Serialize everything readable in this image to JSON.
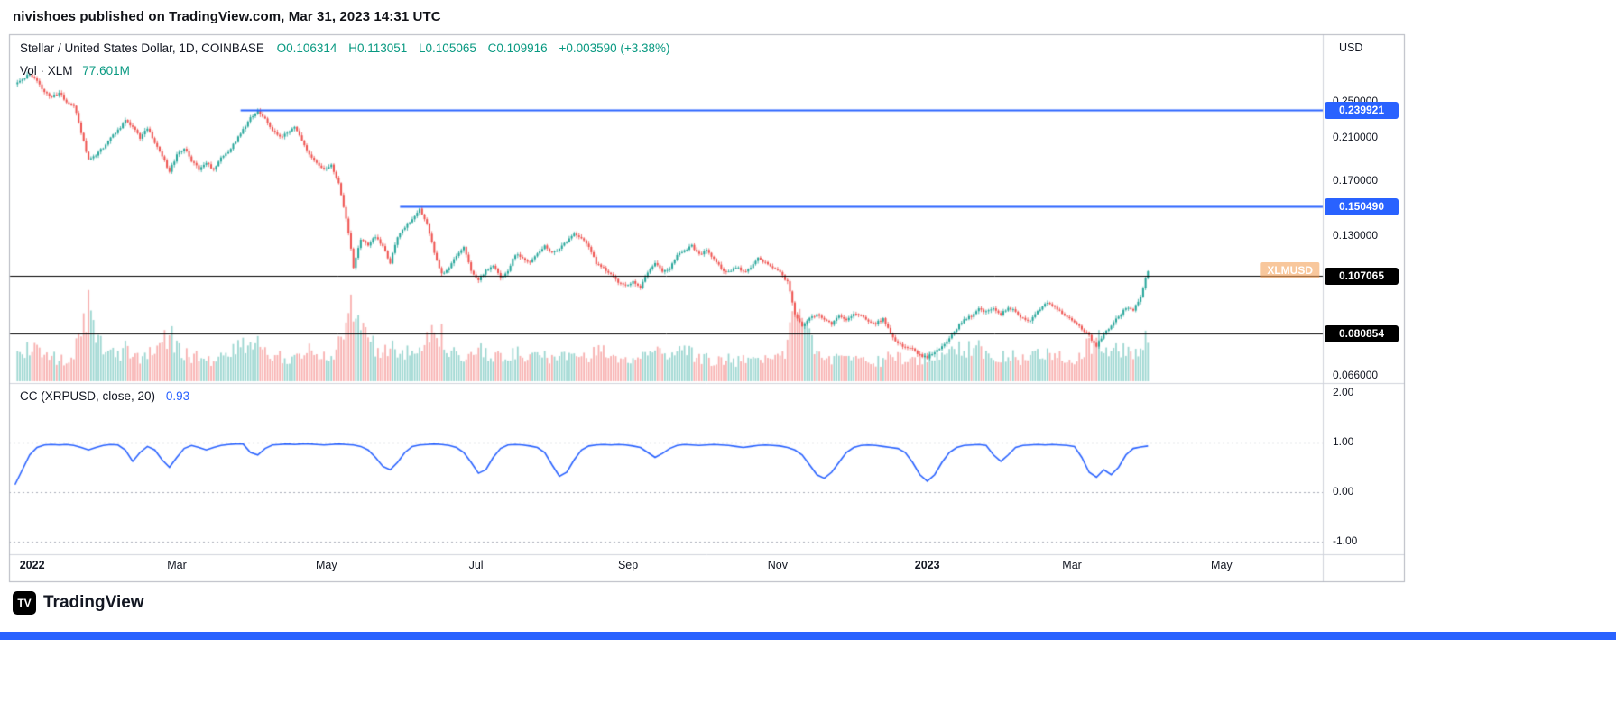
{
  "page": {
    "publish_line": "nivishoes published on TradingView.com, Mar 31, 2023 14:31 UTC",
    "logo_text": "TradingView",
    "logo_glyph": "TV",
    "accent_blue": "#2962ff"
  },
  "chart": {
    "legend": {
      "title": "Stellar / United States Dollar, 1D, COINBASE",
      "o": "O0.106314",
      "h": "H0.113051",
      "l": "L0.105065",
      "c": "C0.109916",
      "change": "+0.003590 (+3.38%)",
      "volume_label": "Vol · XLM",
      "volume_value": "77.601M"
    },
    "cc_legend": {
      "label": "CC (XRPUSD, close, 20)",
      "value": "0.93"
    },
    "axis_currency": "USD"
  },
  "chart_data": {
    "type": "candlestick",
    "title": "Stellar / United States Dollar, 1D, COINBASE",
    "symbol": "XLMUSD",
    "interval": "1D",
    "yscale": "log",
    "ylim_price": [
      0.06,
      0.31
    ],
    "x_start_date": "2021-12-25",
    "sample_interval_days": 3,
    "ohlc_last": {
      "open": 0.106314,
      "high": 0.113051,
      "low": 0.105065,
      "close": 0.109916,
      "change": 0.00359,
      "change_pct": 3.38
    },
    "volume_last": "77.601M",
    "price_axis": {
      "currency": "USD",
      "labels": [
        {
          "text": "0.250000",
          "value": 0.25
        },
        {
          "text": "0.210000",
          "value": 0.21
        },
        {
          "text": "0.170000",
          "value": 0.17
        },
        {
          "text": "0.130000",
          "value": 0.13
        },
        {
          "text": "0.066000",
          "value": 0.066
        }
      ]
    },
    "horizontal_lines": [
      {
        "value": 0.239921,
        "label": "0.239921",
        "color": "#2962ff",
        "start_day": 92
      },
      {
        "value": 0.15049,
        "label": "0.150490",
        "color": "#2962ff",
        "start_day": 157
      },
      {
        "value": 0.107065,
        "label": "0.107065",
        "color": "#000000",
        "start_day": -2
      },
      {
        "value": 0.080854,
        "label": "0.080854",
        "color": "#000000",
        "start_day": -2
      }
    ],
    "x_tick_labels": [
      {
        "label": "2022",
        "day": 7,
        "major": true
      },
      {
        "label": "Mar",
        "day": 66,
        "major": false
      },
      {
        "label": "May",
        "day": 127,
        "major": false
      },
      {
        "label": "Jul",
        "day": 188,
        "major": false
      },
      {
        "label": "Sep",
        "day": 250,
        "major": false
      },
      {
        "label": "Nov",
        "day": 311,
        "major": false
      },
      {
        "label": "2023",
        "day": 372,
        "major": true
      },
      {
        "label": "Mar",
        "day": 431,
        "major": false
      },
      {
        "label": "May",
        "day": 492,
        "major": false
      }
    ],
    "closes_3d": [
      0.272,
      0.278,
      0.287,
      0.276,
      0.262,
      0.255,
      0.262,
      0.25,
      0.246,
      0.215,
      0.188,
      0.193,
      0.2,
      0.21,
      0.218,
      0.228,
      0.222,
      0.21,
      0.22,
      0.205,
      0.192,
      0.178,
      0.193,
      0.2,
      0.188,
      0.18,
      0.186,
      0.18,
      0.19,
      0.196,
      0.206,
      0.218,
      0.232,
      0.238,
      0.23,
      0.218,
      0.21,
      0.216,
      0.221,
      0.208,
      0.193,
      0.186,
      0.18,
      0.184,
      0.168,
      0.142,
      0.112,
      0.128,
      0.124,
      0.13,
      0.124,
      0.114,
      0.13,
      0.136,
      0.141,
      0.149,
      0.138,
      0.12,
      0.108,
      0.112,
      0.118,
      0.124,
      0.11,
      0.105,
      0.11,
      0.113,
      0.106,
      0.11,
      0.119,
      0.117,
      0.114,
      0.119,
      0.124,
      0.12,
      0.122,
      0.127,
      0.132,
      0.129,
      0.124,
      0.114,
      0.111,
      0.108,
      0.104,
      0.102,
      0.104,
      0.101,
      0.109,
      0.114,
      0.109,
      0.111,
      0.119,
      0.121,
      0.124,
      0.119,
      0.121,
      0.117,
      0.111,
      0.109,
      0.112,
      0.109,
      0.111,
      0.117,
      0.114,
      0.111,
      0.109,
      0.104,
      0.089,
      0.084,
      0.087,
      0.089,
      0.087,
      0.085,
      0.088,
      0.086,
      0.089,
      0.088,
      0.086,
      0.085,
      0.087,
      0.081,
      0.077,
      0.076,
      0.075,
      0.073,
      0.072,
      0.074,
      0.076,
      0.079,
      0.083,
      0.087,
      0.088,
      0.091,
      0.09,
      0.092,
      0.089,
      0.092,
      0.09,
      0.087,
      0.086,
      0.09,
      0.094,
      0.093,
      0.09,
      0.088,
      0.086,
      0.083,
      0.08,
      0.076,
      0.081,
      0.084,
      0.088,
      0.092,
      0.091,
      0.097,
      0.11
    ],
    "volumes_rel_3d": [
      0.35,
      0.3,
      0.45,
      0.4,
      0.32,
      0.28,
      0.3,
      0.26,
      0.34,
      0.6,
      0.95,
      0.55,
      0.4,
      0.38,
      0.35,
      0.42,
      0.36,
      0.3,
      0.33,
      0.38,
      0.52,
      0.6,
      0.44,
      0.36,
      0.32,
      0.3,
      0.28,
      0.27,
      0.3,
      0.33,
      0.38,
      0.44,
      0.5,
      0.46,
      0.38,
      0.33,
      0.3,
      0.28,
      0.31,
      0.36,
      0.42,
      0.36,
      0.32,
      0.3,
      0.52,
      0.85,
      1.0,
      0.7,
      0.5,
      0.42,
      0.38,
      0.45,
      0.4,
      0.34,
      0.36,
      0.48,
      0.55,
      0.65,
      0.58,
      0.42,
      0.36,
      0.32,
      0.4,
      0.44,
      0.36,
      0.3,
      0.34,
      0.3,
      0.36,
      0.32,
      0.28,
      0.3,
      0.34,
      0.3,
      0.28,
      0.34,
      0.4,
      0.36,
      0.32,
      0.42,
      0.36,
      0.3,
      0.28,
      0.26,
      0.24,
      0.28,
      0.34,
      0.38,
      0.3,
      0.28,
      0.44,
      0.38,
      0.34,
      0.3,
      0.28,
      0.26,
      0.3,
      0.28,
      0.24,
      0.26,
      0.24,
      0.28,
      0.26,
      0.24,
      0.3,
      0.44,
      1.0,
      0.85,
      0.55,
      0.4,
      0.34,
      0.3,
      0.28,
      0.26,
      0.28,
      0.24,
      0.26,
      0.24,
      0.26,
      0.36,
      0.32,
      0.28,
      0.26,
      0.3,
      0.28,
      0.3,
      0.34,
      0.38,
      0.42,
      0.44,
      0.38,
      0.4,
      0.34,
      0.36,
      0.32,
      0.34,
      0.3,
      0.28,
      0.3,
      0.34,
      0.36,
      0.32,
      0.3,
      0.28,
      0.3,
      0.38,
      0.44,
      0.56,
      0.42,
      0.36,
      0.4,
      0.44,
      0.38,
      0.46,
      0.6
    ],
    "cc_indicator": {
      "type": "line",
      "name": "CC",
      "params": "XRPUSD, close, 20",
      "last": 0.93,
      "color": "#2962ff",
      "ylim": [
        -1.35,
        2.15
      ],
      "axis_labels": [
        {
          "text": "2.00",
          "value": 2
        },
        {
          "text": "1.00",
          "value": 1
        },
        {
          "text": "0.00",
          "value": 0
        },
        {
          "text": "-1.00",
          "value": -1
        }
      ],
      "dashed_levels": [
        1,
        0,
        -1
      ],
      "values_3d": [
        0.15,
        0.45,
        0.75,
        0.9,
        0.95,
        0.96,
        0.95,
        0.96,
        0.94,
        0.9,
        0.85,
        0.9,
        0.94,
        0.96,
        0.95,
        0.85,
        0.62,
        0.8,
        0.92,
        0.85,
        0.65,
        0.5,
        0.7,
        0.88,
        0.94,
        0.9,
        0.85,
        0.9,
        0.94,
        0.96,
        0.97,
        0.97,
        0.8,
        0.75,
        0.88,
        0.95,
        0.96,
        0.97,
        0.96,
        0.97,
        0.97,
        0.96,
        0.95,
        0.96,
        0.97,
        0.96,
        0.95,
        0.92,
        0.85,
        0.7,
        0.52,
        0.45,
        0.6,
        0.8,
        0.92,
        0.95,
        0.96,
        0.97,
        0.96,
        0.94,
        0.9,
        0.8,
        0.6,
        0.38,
        0.45,
        0.7,
        0.88,
        0.95,
        0.96,
        0.95,
        0.93,
        0.9,
        0.8,
        0.55,
        0.32,
        0.4,
        0.65,
        0.85,
        0.93,
        0.95,
        0.96,
        0.95,
        0.96,
        0.95,
        0.93,
        0.9,
        0.8,
        0.7,
        0.78,
        0.88,
        0.94,
        0.96,
        0.95,
        0.94,
        0.95,
        0.96,
        0.95,
        0.94,
        0.92,
        0.9,
        0.92,
        0.94,
        0.95,
        0.94,
        0.93,
        0.9,
        0.85,
        0.75,
        0.55,
        0.35,
        0.28,
        0.4,
        0.6,
        0.8,
        0.9,
        0.94,
        0.95,
        0.94,
        0.92,
        0.9,
        0.88,
        0.8,
        0.6,
        0.35,
        0.22,
        0.35,
        0.6,
        0.8,
        0.9,
        0.94,
        0.95,
        0.96,
        0.94,
        0.75,
        0.62,
        0.75,
        0.9,
        0.94,
        0.95,
        0.96,
        0.95,
        0.96,
        0.95,
        0.94,
        0.92,
        0.7,
        0.4,
        0.3,
        0.45,
        0.35,
        0.5,
        0.75,
        0.88,
        0.91,
        0.93
      ]
    }
  }
}
